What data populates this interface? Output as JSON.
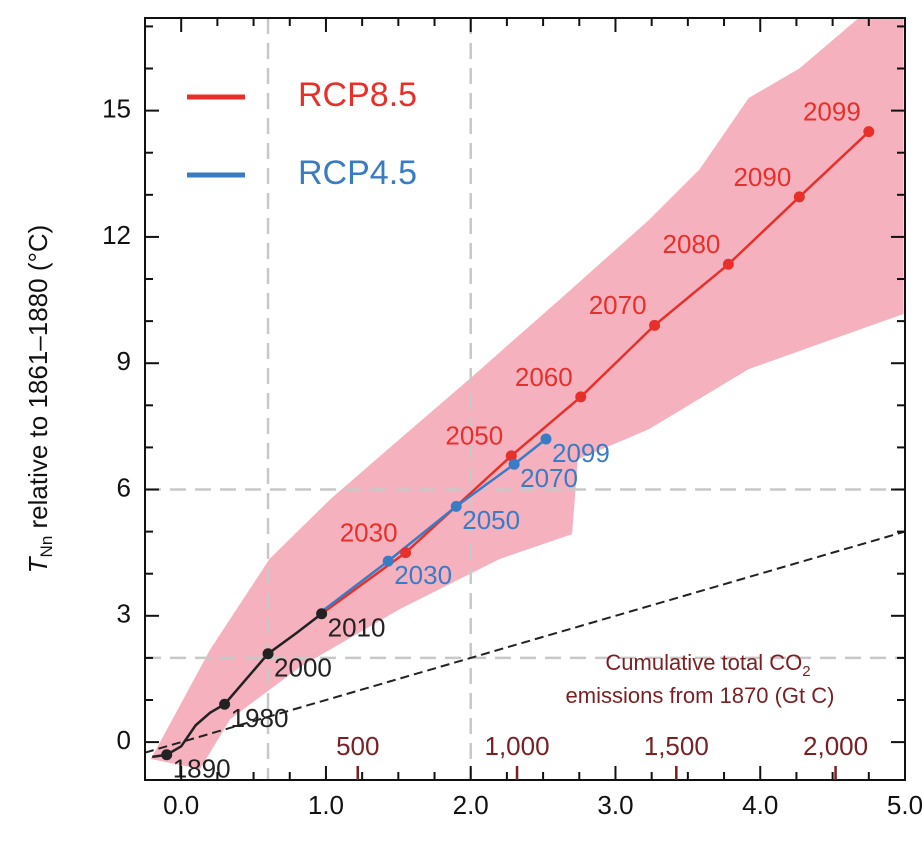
{
  "chart_data": {
    "type": "line",
    "ylabel": [
      "T",
      "Nn",
      " relative to 1861–1880 (°C)"
    ],
    "xlim": [
      -0.25,
      5.0
    ],
    "ylim": [
      -0.9,
      17.2
    ],
    "xticks": [
      {
        "value": 0,
        "label": "0.0"
      },
      {
        "value": 1,
        "label": "1.0"
      },
      {
        "value": 2,
        "label": "2.0"
      },
      {
        "value": 3,
        "label": "3.0"
      },
      {
        "value": 4,
        "label": "4.0"
      },
      {
        "value": 5,
        "label": "5.0"
      }
    ],
    "yticks": [
      0,
      3,
      6,
      9,
      12,
      15
    ],
    "xminor": [
      -0.25,
      0.25,
      0.5,
      0.75,
      1.25,
      1.5,
      1.75,
      2.25,
      2.5,
      2.75,
      3.25,
      3.5,
      3.75,
      4.25,
      4.5,
      4.75
    ],
    "yminor": [
      1,
      2,
      4,
      5,
      7,
      8,
      10,
      11,
      13,
      14,
      16,
      17
    ],
    "x2lim": [
      -168,
      2218
    ],
    "x2ticks": [
      {
        "value": 500,
        "label": "500"
      },
      {
        "value": 1000,
        "label": "1,000"
      },
      {
        "value": 1500,
        "label": "1,500"
      },
      {
        "value": 2000,
        "label": "2,000"
      }
    ],
    "x2label": [
      "Cumulative total CO",
      "2",
      "emissions from 1870 (Gt C)"
    ],
    "reference_lines": {
      "x": [
        0.6,
        2.0
      ],
      "y": [
        2,
        6
      ]
    },
    "diagonal": {
      "x": [
        -0.25,
        5.0
      ],
      "y": [
        -0.25,
        5.0
      ]
    },
    "band": {
      "color": "#f4a3b4",
      "upper": {
        "x": [
          -0.04,
          0.2,
          0.61,
          1.03,
          1.51,
          1.99,
          2.61,
          3.23,
          3.58,
          3.92,
          4.27,
          4.68,
          4.99
        ],
        "y": [
          0.67,
          2.2,
          4.35,
          5.77,
          7.2,
          8.62,
          10.5,
          12.4,
          13.6,
          15.3,
          16.0,
          17.2,
          17.2
        ]
      },
      "lower": {
        "x": [
          -0.21,
          0.13,
          0.34,
          0.82,
          1.51,
          2.2,
          2.7,
          2.74,
          3.23,
          3.92,
          4.99
        ],
        "y": [
          -0.4,
          -0.64,
          0.55,
          1.78,
          3.16,
          4.35,
          4.94,
          6.72,
          7.43,
          8.86,
          10.17
        ]
      }
    },
    "series": [
      {
        "color": "#222222",
        "label_side": "right",
        "x": [
          -0.2,
          -0.1,
          0.0,
          0.1,
          0.2,
          0.3,
          0.45,
          0.6,
          0.8,
          0.97
        ],
        "values": [
          -0.35,
          -0.3,
          -0.1,
          0.4,
          0.7,
          0.9,
          1.5,
          2.1,
          2.6,
          3.05
        ],
        "labels": [
          null,
          "1890",
          null,
          null,
          null,
          "1980",
          null,
          "2000",
          null,
          "2010"
        ]
      },
      {
        "name": "RCP8.5",
        "color": "#e8302a",
        "label_side": "left",
        "x": [
          0.97,
          1.55,
          2.28,
          2.76,
          3.27,
          3.78,
          4.27,
          4.75
        ],
        "values": [
          3.05,
          4.5,
          6.8,
          8.2,
          9.9,
          11.35,
          12.95,
          14.5
        ],
        "labels": [
          null,
          "2030",
          "2050",
          "2060",
          "2070",
          "2080",
          "2090",
          "2099"
        ]
      },
      {
        "name": "RCP4.5",
        "color": "#3a7cc4",
        "label_side": "right",
        "x": [
          0.97,
          1.43,
          1.9,
          2.3,
          2.52
        ],
        "values": [
          3.1,
          4.3,
          5.6,
          6.6,
          7.2
        ],
        "labels": [
          null,
          "2030",
          "2050",
          "2070",
          "2099"
        ]
      }
    ]
  }
}
